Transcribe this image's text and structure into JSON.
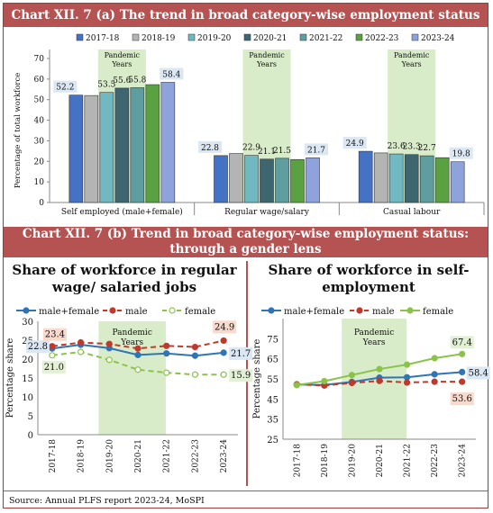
{
  "top_title": "Chart XII. 7 (a) The trend in broad category-wise employment status",
  "bottom_title_line1": "Chart XII. 7 (b) Trend in broad category-wise employment status:",
  "bottom_title_line2": "through a gender lens",
  "left_subtitle_line1": "Share of workforce in regular",
  "left_subtitle_line2": "wage/ salaried jobs",
  "right_subtitle_line1": "Share of workforce in self-",
  "right_subtitle_line2": "employment",
  "source": "Source: Annual PLFS report 2023-24, MoSPI",
  "colors": {
    "accent": "#b55353",
    "shade": "#d9ecc9"
  },
  "chart_data": [
    {
      "type": "bar",
      "ylabel": "Percentage of total workforce",
      "ylim": [
        0,
        70
      ],
      "yticks": [
        0,
        10,
        20,
        30,
        40,
        50,
        60,
        70
      ],
      "categories": [
        "Self employed (male+female)",
        "Regular wage/salary",
        "Casual labour"
      ],
      "shaded_label": "Pandemic Years",
      "series": [
        {
          "name": "2017-18",
          "color": "#4472c4",
          "values": [
            52.2,
            22.8,
            24.9
          ]
        },
        {
          "name": "2018-19",
          "color": "#b4b4b4",
          "values": [
            52.0,
            23.8,
            24.1
          ]
        },
        {
          "name": "2019-20",
          "color": "#70b9c2",
          "values": [
            53.5,
            22.9,
            23.6
          ]
        },
        {
          "name": "2020-21",
          "color": "#3d6671",
          "values": [
            55.6,
            21.1,
            23.3
          ]
        },
        {
          "name": "2021-22",
          "color": "#5f9ea0",
          "values": [
            55.8,
            21.5,
            22.7
          ]
        },
        {
          "name": "2022-23",
          "color": "#5aa142",
          "values": [
            57.3,
            20.9,
            21.8
          ]
        },
        {
          "name": "2023-24",
          "color": "#8ea3dc",
          "values": [
            58.4,
            21.7,
            19.8
          ]
        }
      ],
      "labels": [
        {
          "text": "52.2",
          "cat": 0,
          "value": 52.2
        },
        {
          "text": "53.5",
          "cat": 0,
          "value": 53.5
        },
        {
          "text": "55.6",
          "cat": 0,
          "value": 55.6
        },
        {
          "text": "55.8",
          "cat": 0,
          "value": 55.8
        },
        {
          "text": "58.4",
          "cat": 0,
          "value": 58.4
        },
        {
          "text": "22.8",
          "cat": 1,
          "value": 22.8
        },
        {
          "text": "22.9",
          "cat": 1,
          "value": 22.9
        },
        {
          "text": "21.1",
          "cat": 1,
          "value": 21.1
        },
        {
          "text": "21.5",
          "cat": 1,
          "value": 21.5
        },
        {
          "text": "21.7",
          "cat": 1,
          "value": 21.7
        },
        {
          "text": "24.9",
          "cat": 2,
          "value": 24.9
        },
        {
          "text": "23.6",
          "cat": 2,
          "value": 23.6
        },
        {
          "text": "23.3",
          "cat": 2,
          "value": 23.3
        },
        {
          "text": "22.7",
          "cat": 2,
          "value": 22.7
        },
        {
          "text": "19.8",
          "cat": 2,
          "value": 19.8
        }
      ]
    },
    {
      "type": "line",
      "ylabel": "Percentage share",
      "ylim": [
        0,
        30
      ],
      "yticks": [
        0,
        5,
        10,
        15,
        20,
        25,
        30
      ],
      "x": [
        "2017-18",
        "2018-19",
        "2019-20",
        "2020-21",
        "2021-22",
        "2022-23",
        "2023-24"
      ],
      "shaded_label": "Pandemic Years",
      "shaded_range": [
        "2019-20",
        "2021-22"
      ],
      "series": [
        {
          "name": "male+female",
          "color": "#2e75b6",
          "dash": "solid",
          "values": [
            22.8,
            23.8,
            22.9,
            21.1,
            21.5,
            20.9,
            21.7
          ]
        },
        {
          "name": "male",
          "color": "#c0392b",
          "dash": "dash",
          "values": [
            23.4,
            24.4,
            24.0,
            22.8,
            23.5,
            23.2,
            24.9
          ]
        },
        {
          "name": "female",
          "color": "#8bc34a",
          "dash": "dash",
          "values": [
            21.0,
            21.9,
            19.8,
            17.2,
            16.4,
            15.9,
            15.9
          ]
        }
      ],
      "labels": [
        {
          "text": "22.8",
          "series": 0,
          "index": 0
        },
        {
          "text": "23.4",
          "series": 1,
          "index": 0
        },
        {
          "text": "21.0",
          "series": 2,
          "index": 0
        },
        {
          "text": "24.9",
          "series": 1,
          "index": 6
        },
        {
          "text": "21.7",
          "series": 0,
          "index": 6
        },
        {
          "text": "15.9",
          "series": 2,
          "index": 6
        }
      ]
    },
    {
      "type": "line",
      "ylabel": "Percentage share",
      "ylim": [
        25,
        85
      ],
      "yticks": [
        25,
        35,
        45,
        55,
        65,
        75
      ],
      "x": [
        "2017-18",
        "2018-19",
        "2019-20",
        "2020-21",
        "2021-22",
        "2022-23",
        "2023-24"
      ],
      "shaded_label": "Pandemic Years",
      "shaded_range": [
        "2019-20",
        "2021-22"
      ],
      "series": [
        {
          "name": "male+female",
          "color": "#2e75b6",
          "dash": "solid",
          "values": [
            52.2,
            52.0,
            53.5,
            55.6,
            55.8,
            57.3,
            58.4
          ]
        },
        {
          "name": "male",
          "color": "#c0392b",
          "dash": "dash",
          "values": [
            52.3,
            51.7,
            53.0,
            54.0,
            53.2,
            53.6,
            53.6
          ]
        },
        {
          "name": "female",
          "color": "#8bc34a",
          "dash": "solid",
          "values": [
            51.9,
            53.9,
            56.9,
            59.9,
            62.1,
            65.3,
            67.4
          ]
        }
      ],
      "labels": [
        {
          "text": "67.4",
          "series": 2,
          "index": 6
        },
        {
          "text": "58.4",
          "series": 0,
          "index": 6
        },
        {
          "text": "53.6",
          "series": 1,
          "index": 6
        }
      ]
    }
  ]
}
